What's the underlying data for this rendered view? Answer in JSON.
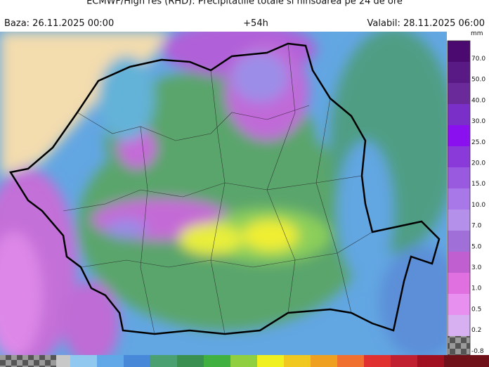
{
  "header": {
    "title": "ECMWF/High res (RHD): Precipitatiile totale si ninsoarea pe 24 de ore",
    "base": "Baza: 26.11.2025 00:00",
    "step": "+54h",
    "valid": "Valabil: 28.11.2025 06:00"
  },
  "legend": {
    "unit": "mm",
    "labels": [
      "70.0",
      "50.0",
      "40.0",
      "30.0",
      "25.0",
      "20.0",
      "15.0",
      "10.0",
      "7.0",
      "5.0",
      "3.0",
      "1.0",
      "0.5",
      "0.2",
      "-0.8"
    ]
  }
}
